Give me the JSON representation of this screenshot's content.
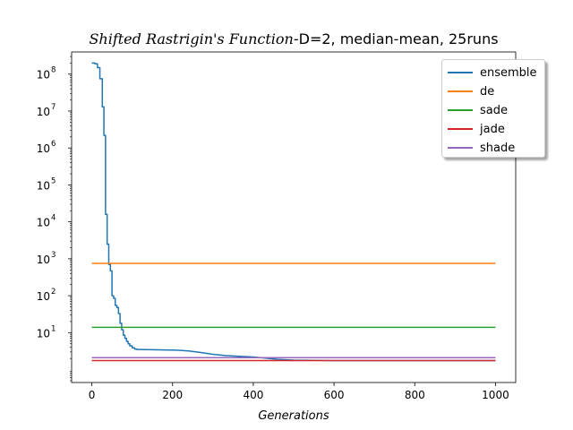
{
  "chart_data": {
    "type": "line",
    "title": {
      "italic_part": "Shifted Rastrigin's Function",
      "rest": "-D=2, median-mean, 25runs"
    },
    "xlabel": "Generations",
    "ylabel": "",
    "xlim": [
      -50,
      1050
    ],
    "ylim_log10": [
      -0.35,
      8.6
    ],
    "yscale": "log",
    "grid": false,
    "legend_placement": "top-right",
    "x_ticks": [
      0,
      200,
      400,
      600,
      800,
      1000
    ],
    "y_ticks": [
      {
        "exp": 1,
        "label": "10"
      },
      {
        "exp": 2,
        "label": "10"
      },
      {
        "exp": 3,
        "label": "10"
      },
      {
        "exp": 4,
        "label": "10"
      },
      {
        "exp": 5,
        "label": "10"
      },
      {
        "exp": 6,
        "label": "10"
      },
      {
        "exp": 7,
        "label": "10"
      },
      {
        "exp": 8,
        "label": "10"
      }
    ],
    "series": [
      {
        "name": "ensemble",
        "color": "#1f77b4",
        "points": [
          [
            0,
            200000000.0
          ],
          [
            8,
            200000000.0
          ],
          [
            8,
            190000000.0
          ],
          [
            14,
            190000000.0
          ],
          [
            14,
            150000000.0
          ],
          [
            20,
            150000000.0
          ],
          [
            20,
            75000000.0
          ],
          [
            26,
            75000000.0
          ],
          [
            26,
            13000000.0
          ],
          [
            30,
            13000000.0
          ],
          [
            30,
            2200000.0
          ],
          [
            34,
            2200000.0
          ],
          [
            34,
            16000.0
          ],
          [
            38,
            16000.0
          ],
          [
            38,
            2500
          ],
          [
            42,
            2500
          ],
          [
            42,
            700
          ],
          [
            46,
            700
          ],
          [
            46,
            470
          ],
          [
            50,
            470
          ],
          [
            50,
            100
          ],
          [
            54,
            100
          ],
          [
            54,
            85
          ],
          [
            58,
            85
          ],
          [
            58,
            55
          ],
          [
            62,
            55
          ],
          [
            62,
            48
          ],
          [
            66,
            48
          ],
          [
            66,
            33
          ],
          [
            70,
            33
          ],
          [
            70,
            18
          ],
          [
            74,
            18
          ],
          [
            74,
            12
          ],
          [
            78,
            12
          ],
          [
            78,
            8.5
          ],
          [
            82,
            8.5
          ],
          [
            82,
            7
          ],
          [
            86,
            7
          ],
          [
            86,
            5.8
          ],
          [
            90,
            5.8
          ],
          [
            90,
            5
          ],
          [
            94,
            5
          ],
          [
            94,
            4.4
          ],
          [
            100,
            4.4
          ],
          [
            100,
            3.9
          ],
          [
            106,
            3.9
          ],
          [
            106,
            3.6
          ],
          [
            112,
            3.6
          ],
          [
            112,
            3.5
          ],
          [
            120,
            3.5
          ],
          [
            150,
            3.45
          ],
          [
            180,
            3.4
          ],
          [
            210,
            3.35
          ],
          [
            240,
            3.2
          ],
          [
            270,
            2.9
          ],
          [
            300,
            2.6
          ],
          [
            330,
            2.4
          ],
          [
            360,
            2.3
          ],
          [
            400,
            2.2
          ],
          [
            430,
            2.05
          ],
          [
            460,
            1.9
          ],
          [
            500,
            1.8
          ],
          [
            600,
            1.75
          ],
          [
            800,
            1.75
          ],
          [
            1000,
            1.75
          ]
        ]
      },
      {
        "name": "de",
        "color": "#ff7f0e",
        "points": [
          [
            0,
            750
          ],
          [
            1000,
            750
          ]
        ]
      },
      {
        "name": "sade",
        "color": "#2ca02c",
        "points": [
          [
            0,
            14
          ],
          [
            1000,
            14
          ]
        ]
      },
      {
        "name": "jade",
        "color": "#d62728",
        "points": [
          [
            0,
            1.75
          ],
          [
            1000,
            1.75
          ]
        ]
      },
      {
        "name": "shade",
        "color": "#9467bd",
        "points": [
          [
            0,
            2.1
          ],
          [
            1000,
            2.1
          ]
        ]
      }
    ]
  }
}
